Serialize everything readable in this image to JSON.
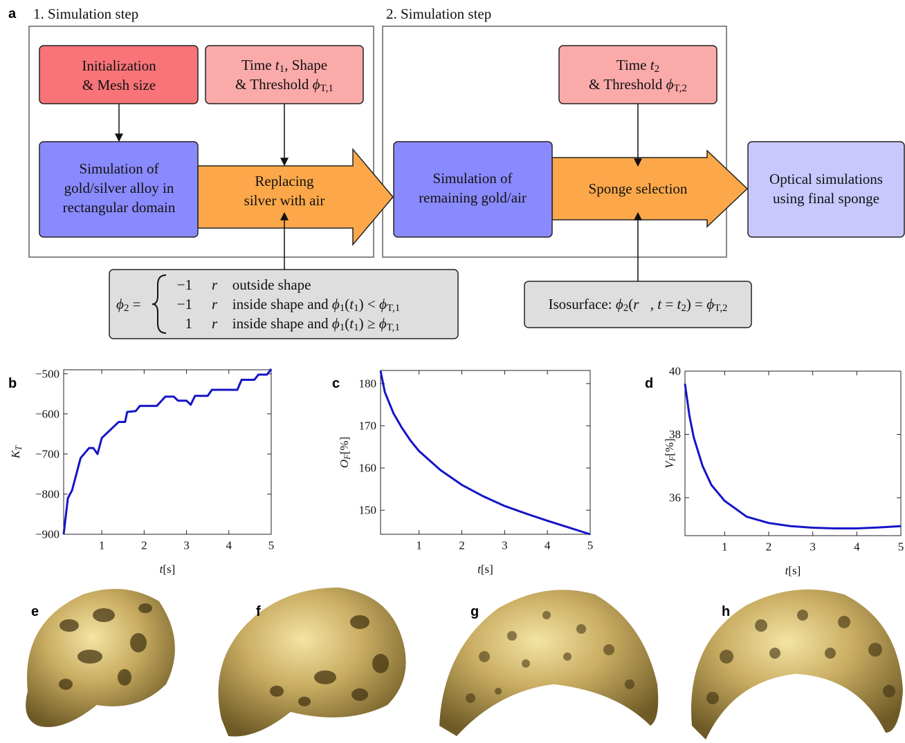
{
  "diagram": {
    "panel_label": "a",
    "steps": [
      "1.  Simulation step",
      "2.  Simulation step"
    ],
    "boxes": [
      [
        [
          "Initialization"
        ],
        [
          "& Mesh size"
        ]
      ],
      [
        [
          "Time ",
          {
            "it": "t"
          },
          {
            "sub": "1"
          },
          ", Shape"
        ],
        [
          "& Threshold ",
          {
            "it": "ϕ"
          },
          {
            "sub": "T,1"
          }
        ]
      ],
      [
        [
          "Time ",
          {
            "it": "t"
          },
          {
            "sub": "2"
          }
        ],
        [
          "& Threshold ",
          {
            "it": "ϕ"
          },
          {
            "sub": "T,2"
          }
        ]
      ],
      [
        [
          "Simulation of"
        ],
        [
          "gold/silver alloy in"
        ],
        [
          "rectangular domain"
        ]
      ],
      [
        [
          "Replacing"
        ],
        [
          "silver with air"
        ]
      ],
      [
        [
          "Simulation of"
        ],
        [
          "remaining gold/air"
        ]
      ],
      [
        [
          "Sponge selection"
        ]
      ],
      [
        [
          "Optical simulations"
        ],
        [
          "using final sponge"
        ]
      ],
      [
        [
          "Isosurface:  ",
          {
            "it": "ϕ"
          },
          {
            "sub": "2"
          },
          "(",
          {
            "it": "r⃗"
          },
          ", ",
          {
            "it": "t"
          },
          " = ",
          {
            "it": "t"
          },
          {
            "sub": "2"
          },
          ") = ",
          {
            "it": "ϕ"
          },
          {
            "sub": "T,2"
          }
        ]
      ]
    ],
    "equation": {
      "lhs": [
        {
          "it": "ϕ"
        },
        {
          "sub": "2"
        },
        " ="
      ],
      "rows": [
        {
          "value": "−1",
          "condition": [
            {
              "it": "r⃗"
            },
            " outside shape"
          ]
        },
        {
          "value": "−1",
          "condition": [
            {
              "it": "r⃗"
            },
            " inside shape and ",
            {
              "it": "ϕ"
            },
            {
              "sub": "1"
            },
            "(",
            {
              "it": "t"
            },
            {
              "sub": "1"
            },
            ") < ",
            {
              "it": "ϕ"
            },
            {
              "sub": "T,1"
            }
          ]
        },
        {
          "value": "1",
          "condition": [
            {
              "it": "r⃗"
            },
            " inside shape and ",
            {
              "it": "ϕ"
            },
            {
              "sub": "1"
            },
            "(",
            {
              "it": "t"
            },
            {
              "sub": "1"
            },
            ") ≥ ",
            {
              "it": "ϕ"
            },
            {
              "sub": "T,1"
            }
          ]
        }
      ]
    }
  },
  "chart_data": [
    {
      "type": "line",
      "panel_label": "b",
      "color": "#1414c8",
      "xlabel": {
        "symbol": "t",
        "unit": "[s]"
      },
      "ylabel": {
        "symbol": "K",
        "subscript": "T"
      },
      "x": [
        0.1,
        0.2,
        0.3,
        0.5,
        0.7,
        0.8,
        0.9,
        1.0,
        1.2,
        1.4,
        1.55,
        1.6,
        1.8,
        1.9,
        2.3,
        2.5,
        2.7,
        2.8,
        3.0,
        3.1,
        3.2,
        3.5,
        3.6,
        4.2,
        4.3,
        4.6,
        4.7,
        4.9,
        5.0
      ],
      "values": [
        -900,
        -810,
        -790,
        -710,
        -685,
        -685,
        -700,
        -660,
        -640,
        -620,
        -620,
        -595,
        -593,
        -580,
        -580,
        -557,
        -557,
        -567,
        -567,
        -577,
        -555,
        -555,
        -540,
        -540,
        -515,
        -515,
        -502,
        -502,
        -488
      ],
      "xlim": [
        0.1,
        5
      ],
      "ylim": [
        -900,
        -490
      ],
      "xticks": [
        1,
        2,
        3,
        4,
        5
      ],
      "yticks": [
        {
          "value": -900,
          "label": "−900"
        },
        {
          "value": -800,
          "label": "−800"
        },
        {
          "value": -700,
          "label": "−700"
        },
        {
          "value": -600,
          "label": "−600"
        },
        {
          "value": -500,
          "label": "−500"
        }
      ]
    },
    {
      "type": "line",
      "panel_label": "c",
      "color": "#1414c8",
      "xlabel": {
        "symbol": "t",
        "unit": "[s]"
      },
      "ylabel": {
        "symbol": "O",
        "subscript": "F",
        "unit": "[%]"
      },
      "x": [
        0.1,
        0.2,
        0.4,
        0.6,
        0.8,
        1.0,
        1.5,
        2.0,
        2.5,
        3.0,
        3.5,
        4.0,
        4.5,
        5.0
      ],
      "values": [
        183,
        178,
        173,
        169.5,
        166.5,
        164,
        159.5,
        156,
        153.3,
        151,
        149.2,
        147.5,
        145.9,
        144.3
      ],
      "xlim": [
        0.1,
        5
      ],
      "ylim": [
        144.3,
        183.1
      ],
      "xticks": [
        1,
        2,
        3,
        4,
        5
      ],
      "yticks": [
        150,
        160,
        170,
        180
      ]
    },
    {
      "type": "line",
      "panel_label": "d",
      "color": "#1414c8",
      "xlabel": {
        "symbol": "t",
        "unit": "[s]"
      },
      "ylabel": {
        "symbol": "V",
        "subscript": "F",
        "unit": "[%]"
      },
      "x": [
        0.1,
        0.2,
        0.3,
        0.5,
        0.7,
        1.0,
        1.5,
        2.0,
        2.5,
        3.0,
        3.5,
        4.0,
        4.5,
        5.0
      ],
      "values": [
        39.6,
        38.6,
        37.9,
        37.0,
        36.4,
        35.9,
        35.4,
        35.2,
        35.1,
        35.05,
        35.03,
        35.03,
        35.06,
        35.1
      ],
      "xlim": [
        0.1,
        5
      ],
      "ylim": [
        34.8,
        40
      ],
      "xticks": [
        1,
        2,
        3,
        4,
        5
      ],
      "yticks": [
        36,
        38,
        40
      ]
    }
  ],
  "renders": {
    "panel_labels": [
      "e",
      "f",
      "g",
      "h"
    ]
  }
}
